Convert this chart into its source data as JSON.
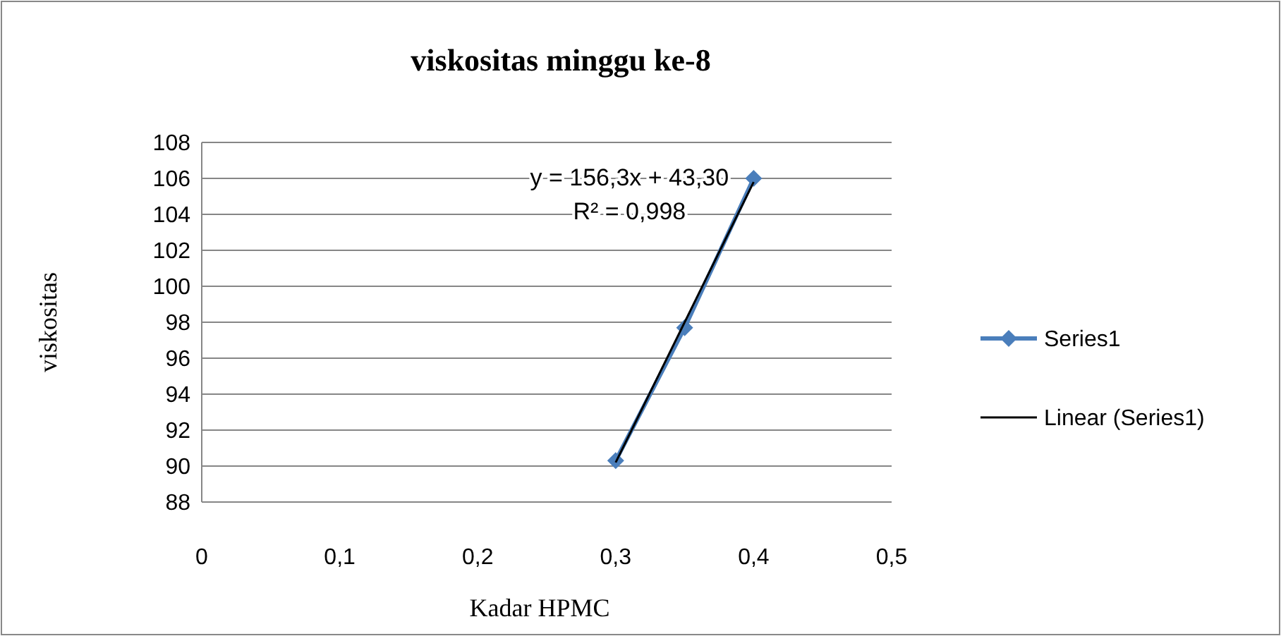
{
  "chart_data": {
    "type": "line",
    "title": "viskositas minggu ke-8",
    "xlabel": "Kadar HPMC",
    "ylabel": "viskositas",
    "xlim": [
      0,
      0.5
    ],
    "xticks": [
      {
        "value": 0,
        "label": "0"
      },
      {
        "value": 0.1,
        "label": "0,1"
      },
      {
        "value": 0.2,
        "label": "0,2"
      },
      {
        "value": 0.3,
        "label": "0,3"
      },
      {
        "value": 0.4,
        "label": "0,4"
      },
      {
        "value": 0.5,
        "label": "0,5"
      }
    ],
    "ylim": [
      88,
      108
    ],
    "yticks": [
      88,
      90,
      92,
      94,
      96,
      98,
      100,
      102,
      104,
      106,
      108
    ],
    "grid": "y",
    "legend": "right",
    "annotations": [
      "y = 156,3x + 43,30",
      "R² = 0,998"
    ],
    "series": [
      {
        "name": "Series1",
        "color": "#4a7ebb",
        "marker": "diamond",
        "x": [
          0.3,
          0.35,
          0.4
        ],
        "values": [
          90.3,
          97.7,
          106
        ]
      },
      {
        "name": "Linear (Series1)",
        "color": "#000000",
        "marker": "none",
        "x": [
          0.3,
          0.4
        ],
        "values": [
          90.2,
          105.8
        ]
      }
    ]
  }
}
